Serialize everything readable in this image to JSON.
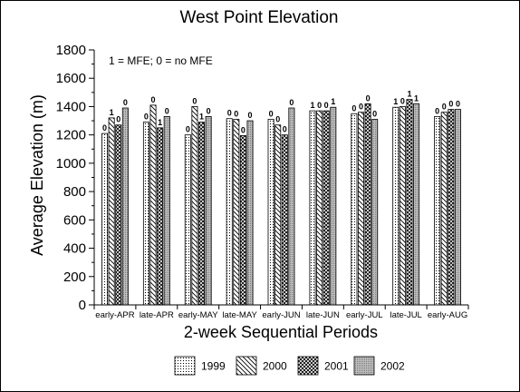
{
  "chart_data": {
    "type": "bar",
    "title": "West Point Elevation",
    "xlabel": "2-week Sequential Periods",
    "ylabel": "Average Elevation (m)",
    "ylim": [
      0,
      1800
    ],
    "yticks": [
      "0",
      "200",
      "400",
      "600",
      "800",
      "1000",
      "1200",
      "1400",
      "1600",
      "1800"
    ],
    "annotation": "1 = MFE; 0 = no MFE",
    "categories": [
      "early-APR",
      "late-APR",
      "early-MAY",
      "late-MAY",
      "early-JUN",
      "late-JUN",
      "early-JUL",
      "late-JUL",
      "early-AUG"
    ],
    "series": [
      {
        "name": "1999",
        "pattern": "dots",
        "values": [
          1210,
          1290,
          1200,
          1315,
          1310,
          1370,
          1350,
          1395,
          1330
        ],
        "labels": [
          "0",
          "0",
          "0",
          "0",
          "0",
          "1",
          "0",
          "1",
          "0"
        ]
      },
      {
        "name": "2000",
        "pattern": "hatch",
        "values": [
          1320,
          1410,
          1400,
          1310,
          1270,
          1370,
          1360,
          1400,
          1360
        ],
        "labels": [
          "1",
          "0",
          "0",
          "0",
          "0",
          "0",
          "0",
          "0",
          "0"
        ]
      },
      {
        "name": "2001",
        "pattern": "cross",
        "values": [
          1270,
          1250,
          1290,
          1195,
          1200,
          1370,
          1420,
          1450,
          1380
        ],
        "labels": [
          "0",
          "1",
          "1",
          "0",
          "0",
          "0",
          "0",
          "1",
          "0"
        ]
      },
      {
        "name": "2002",
        "pattern": "fine",
        "values": [
          1390,
          1330,
          1330,
          1300,
          1390,
          1395,
          1310,
          1420,
          1380
        ],
        "labels": [
          "0",
          "0",
          "0",
          "0",
          "0",
          "1",
          "0",
          "1",
          "0"
        ]
      }
    ],
    "legend_position": "bottom",
    "colors": {
      "stroke": "#000000",
      "background": "#ffffff"
    }
  }
}
